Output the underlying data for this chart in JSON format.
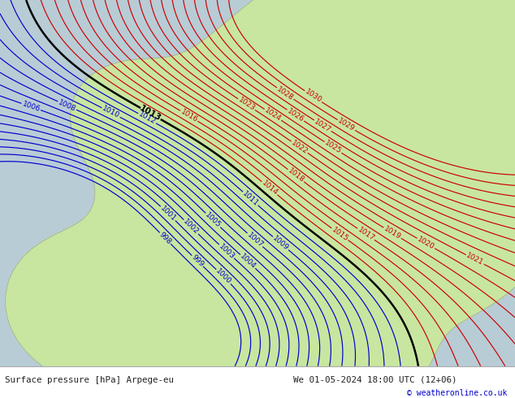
{
  "title_left": "Surface pressure [hPa] Arpege-eu",
  "title_right": "We 01-05-2024 18:00 UTC (12+06)",
  "copyright": "© weatheronline.co.uk",
  "bg_color_sea": "#b8ccd6",
  "bg_color_land": "#c8e6a0",
  "color_high": "#cc0000",
  "color_low": "#0000cc",
  "color_mid": "#000000",
  "coast_color": "#888888",
  "mid_pressure": 1013,
  "figsize": [
    6.34,
    4.9
  ],
  "dpi": 100,
  "footer_color": "#222222",
  "copyright_color": "#0000cc",
  "levels_low": [
    998,
    999,
    1000,
    1001,
    1002,
    1003,
    1004,
    1005,
    1006,
    1007,
    1008,
    1009,
    1010,
    1011,
    1012
  ],
  "levels_high": [
    1014,
    1015,
    1016,
    1017,
    1018,
    1019,
    1020,
    1021,
    1022,
    1023,
    1024,
    1025,
    1026,
    1027,
    1028,
    1029,
    1030
  ],
  "levels_mid": [
    1013
  ]
}
